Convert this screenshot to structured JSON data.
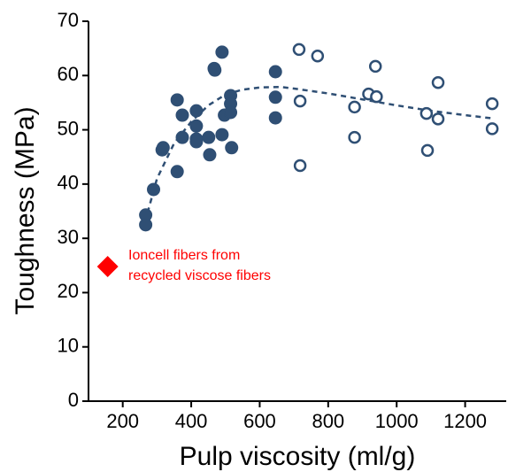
{
  "chart_data": {
    "type": "scatter",
    "x_label": "Pulp viscosity (ml/g)",
    "y_label": "Toughness (MPa)",
    "xlim": [
      100,
      1320
    ],
    "ylim": [
      0,
      70
    ],
    "xticks": [
      200,
      400,
      600,
      800,
      1000,
      1200
    ],
    "yticks": [
      0,
      10,
      20,
      30,
      40,
      50,
      60,
      70
    ],
    "series": [
      {
        "style": "filled",
        "color": "#2f4f74",
        "x": [
          267,
          267,
          290,
          315,
          318,
          359,
          359,
          374,
          374,
          415,
          415,
          415,
          415,
          451,
          454,
          467,
          469,
          490,
          490,
          497,
          515,
          515,
          515,
          518,
          646,
          646,
          646
        ],
        "values": [
          34.3,
          32.5,
          39.0,
          46.3,
          46.7,
          55.5,
          42.3,
          52.7,
          48.6,
          53.5,
          50.7,
          48.3,
          47.8,
          48.6,
          45.4,
          61.3,
          61.0,
          64.3,
          49.1,
          52.7,
          56.3,
          54.8,
          53.2,
          46.7,
          60.7,
          56.0,
          52.2
        ]
      },
      {
        "style": "open",
        "color": "#2f4f74",
        "x": [
          715,
          718,
          718,
          769,
          877,
          877,
          918,
          938,
          941,
          1087,
          1090,
          1121,
          1121,
          1279,
          1279
        ],
        "values": [
          64.8,
          55.3,
          43.4,
          63.6,
          54.2,
          48.6,
          56.6,
          61.7,
          56.1,
          53.0,
          46.2,
          58.7,
          52.0,
          54.8,
          50.2
        ]
      }
    ],
    "fit": {
      "color": "#2f4f74",
      "x": [
        265,
        300,
        350,
        400,
        450,
        500,
        550,
        600,
        660,
        700,
        800,
        900,
        1000,
        1100,
        1200,
        1280
      ],
      "values": [
        33,
        41,
        47.5,
        51.5,
        54.5,
        56.5,
        57.4,
        57.8,
        57.9,
        57.6,
        56.7,
        55.6,
        54.5,
        53.5,
        52.7,
        52.1
      ]
    },
    "annotation": {
      "x": 156,
      "y": 24.8,
      "color": "#ff0000",
      "lines": [
        "Ioncell fibers from",
        "recycled viscose fibers"
      ]
    }
  }
}
